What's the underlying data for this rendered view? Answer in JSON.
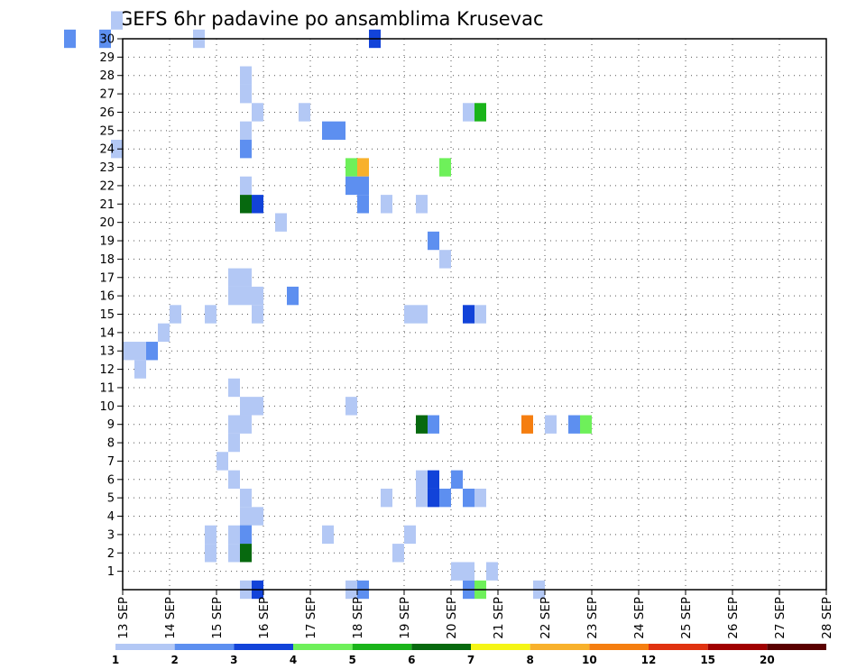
{
  "chart_data": {
    "type": "heatmap",
    "title": "GEFS 6hr padavine po ansamblima Krusevac",
    "x_tick_labels": [
      "13 SEP",
      "14 SEP",
      "15 SEP",
      "16 SEP",
      "17 SEP",
      "18 SEP",
      "19 SEP",
      "20 SEP",
      "21 SEP",
      "22 SEP",
      "23 SEP",
      "24 SEP",
      "25 SEP",
      "26 SEP",
      "27 SEP",
      "28 SEP"
    ],
    "x_step_hours": 6,
    "y_range": [
      0,
      30
    ],
    "y_tick_labels": [
      "1",
      "2",
      "3",
      "4",
      "5",
      "6",
      "7",
      "8",
      "9",
      "10",
      "11",
      "12",
      "13",
      "14",
      "15",
      "16",
      "17",
      "18",
      "19",
      "20",
      "21",
      "22",
      "23",
      "24",
      "25",
      "26",
      "27",
      "28",
      "29",
      "30"
    ],
    "grid": true,
    "color_levels": [
      "1",
      "2",
      "3",
      "4",
      "5",
      "6",
      "7",
      "8",
      "10",
      "12",
      "15",
      "20"
    ],
    "colors": [
      "#b3c8f5",
      "#5d8ff0",
      "#1243d9",
      "#6ef05a",
      "#1ab41a",
      "#07690f",
      "#f5f515",
      "#f8b12c",
      "#f57e10",
      "#e03210",
      "#a00000",
      "#5a0000"
    ],
    "cells": [
      [
        12.75,
        30,
        0
      ],
      [
        11.75,
        29,
        1
      ],
      [
        12.5,
        29,
        1
      ],
      [
        18.25,
        29,
        2
      ],
      [
        14.5,
        29,
        0
      ],
      [
        15.5,
        27,
        0
      ],
      [
        15.5,
        26,
        0
      ],
      [
        15.75,
        25,
        0
      ],
      [
        15.5,
        26,
        0
      ],
      [
        16.75,
        25,
        0
      ],
      [
        20.25,
        25,
        0
      ],
      [
        20.5,
        25,
        4
      ],
      [
        15.5,
        24,
        0
      ],
      [
        17.25,
        24,
        1
      ],
      [
        17.5,
        24,
        1
      ],
      [
        15.5,
        23,
        1
      ],
      [
        12.75,
        23,
        0
      ],
      [
        17.75,
        22,
        3
      ],
      [
        18,
        22,
        7
      ],
      [
        19.75,
        22,
        3
      ],
      [
        15.5,
        21,
        0
      ],
      [
        17.75,
        21,
        1
      ],
      [
        18,
        21,
        1
      ],
      [
        15.5,
        20,
        5
      ],
      [
        15.75,
        20,
        2
      ],
      [
        18,
        20,
        1
      ],
      [
        18.5,
        20,
        0
      ],
      [
        19.25,
        20,
        0
      ],
      [
        16.25,
        19,
        0
      ],
      [
        19.5,
        18,
        1
      ],
      [
        19.75,
        17,
        0
      ],
      [
        15.25,
        16,
        0
      ],
      [
        15.5,
        16,
        0
      ],
      [
        15.25,
        15,
        0
      ],
      [
        15.5,
        15,
        0
      ],
      [
        15.75,
        15,
        0
      ],
      [
        16.5,
        15,
        1
      ],
      [
        14.75,
        14,
        0
      ],
      [
        15.75,
        14,
        0
      ],
      [
        20.25,
        14,
        2
      ],
      [
        20.5,
        14,
        0
      ],
      [
        14,
        14,
        0
      ],
      [
        19,
        14,
        0
      ],
      [
        19.25,
        14,
        0
      ],
      [
        13.75,
        13,
        0
      ],
      [
        13.25,
        12,
        0
      ],
      [
        13.5,
        12,
        1
      ],
      [
        13,
        12,
        0
      ],
      [
        13.25,
        11,
        0
      ],
      [
        15.25,
        10,
        0
      ],
      [
        15.5,
        9,
        0
      ],
      [
        15.75,
        9,
        0
      ],
      [
        17.75,
        9,
        0
      ],
      [
        15.25,
        8,
        0
      ],
      [
        15.5,
        8,
        0
      ],
      [
        19.25,
        8,
        5
      ],
      [
        19.5,
        8,
        1
      ],
      [
        21.5,
        8,
        8
      ],
      [
        22,
        8,
        0
      ],
      [
        22.5,
        8,
        1
      ],
      [
        22.75,
        8,
        3
      ],
      [
        15.25,
        7,
        0
      ],
      [
        15,
        6,
        0
      ],
      [
        15.25,
        5,
        0
      ],
      [
        19.25,
        5,
        0
      ],
      [
        19.5,
        5,
        2
      ],
      [
        20,
        5,
        1
      ],
      [
        15.5,
        4,
        0
      ],
      [
        18.5,
        4,
        0
      ],
      [
        19.5,
        4,
        0
      ],
      [
        19.75,
        4,
        1
      ],
      [
        20.25,
        4,
        1
      ],
      [
        20.5,
        4,
        0
      ],
      [
        19.25,
        4,
        0
      ],
      [
        19.5,
        4,
        2
      ],
      [
        15.5,
        3,
        0
      ],
      [
        15.75,
        3,
        0
      ],
      [
        15.5,
        2,
        1
      ],
      [
        14.75,
        2,
        0
      ],
      [
        15.25,
        2,
        0
      ],
      [
        15.5,
        2,
        1
      ],
      [
        17.25,
        2,
        0
      ],
      [
        19,
        2,
        0
      ],
      [
        14.75,
        1,
        0
      ],
      [
        15.25,
        1,
        0
      ],
      [
        15.5,
        1,
        5
      ],
      [
        18.75,
        1,
        0
      ],
      [
        20,
        0,
        0
      ],
      [
        20.25,
        0,
        0
      ],
      [
        20.75,
        0,
        0
      ],
      [
        15.5,
        -1,
        0
      ],
      [
        15.75,
        -1,
        2
      ],
      [
        17.75,
        -1,
        0
      ],
      [
        18,
        -1,
        1
      ],
      [
        20.25,
        -1,
        1
      ],
      [
        20.5,
        -1,
        3
      ],
      [
        21.75,
        -1,
        0
      ]
    ]
  }
}
